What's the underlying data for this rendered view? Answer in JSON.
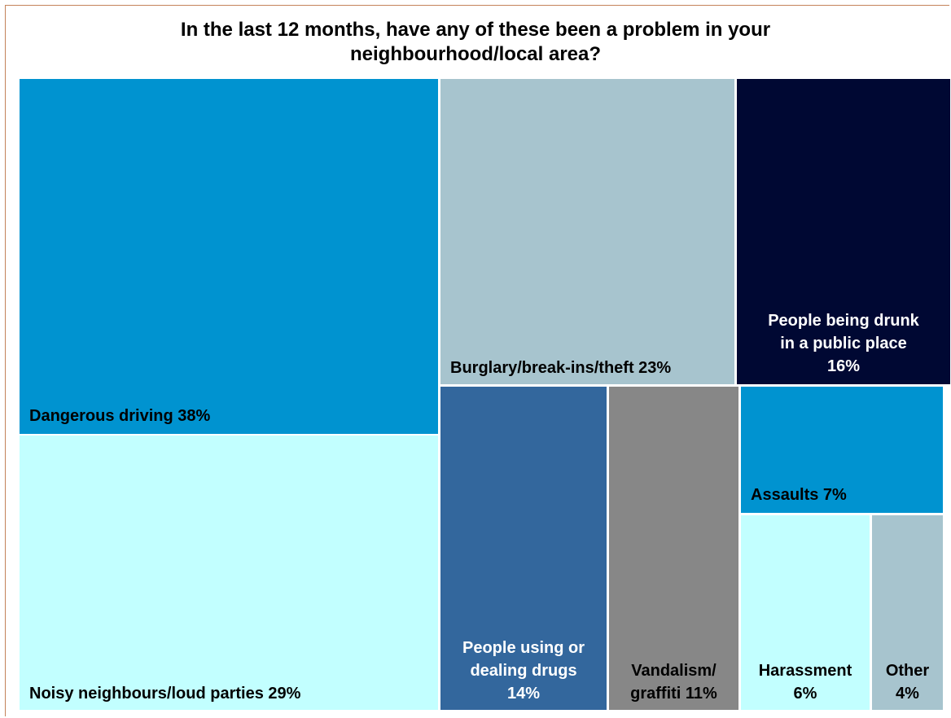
{
  "chart_data": {
    "type": "treemap",
    "title": "In the last 12 months, have any of these been a problem in your neighbourhood/local area?",
    "title_lines": [
      "In the last 12 months, have any of these been a problem in your",
      "neighbourhood/local area?"
    ],
    "unit": "%",
    "items": [
      {
        "name": "Dangerous driving",
        "value": 38,
        "label_lines": [
          "Dangerous driving 38%"
        ],
        "color": "#0093d0",
        "text_color": "#000000"
      },
      {
        "name": "Noisy neighbours/loud parties",
        "value": 29,
        "label_lines": [
          "Noisy neighbours/loud parties 29%"
        ],
        "color": "#c2ffff",
        "text_color": "#000000"
      },
      {
        "name": "Burglary/break-ins/theft",
        "value": 23,
        "label_lines": [
          "Burglary/break-ins/theft 23%"
        ],
        "color": "#a7c4ce",
        "text_color": "#000000"
      },
      {
        "name": "People being drunk in a public place",
        "value": 16,
        "label_lines": [
          "People being drunk",
          "in a public place",
          "16%"
        ],
        "color": "#000833",
        "text_color": "#ffffff"
      },
      {
        "name": "People using or dealing drugs",
        "value": 14,
        "label_lines": [
          "People using or",
          "dealing drugs",
          "14%"
        ],
        "color": "#33679d",
        "text_color": "#ffffff"
      },
      {
        "name": "Vandalism/graffiti",
        "value": 11,
        "label_lines": [
          "Vandalism/",
          "graffiti 11%"
        ],
        "color": "#878787",
        "text_color": "#000000"
      },
      {
        "name": "Assaults",
        "value": 7,
        "label_lines": [
          "Assaults 7%"
        ],
        "color": "#0093d0",
        "text_color": "#000000"
      },
      {
        "name": "Harassment",
        "value": 6,
        "label_lines": [
          "Harassment",
          "6%"
        ],
        "color": "#c2ffff",
        "text_color": "#000000"
      },
      {
        "name": "Other",
        "value": 4,
        "label_lines": [
          "Other",
          "4%"
        ],
        "color": "#a7c4ce",
        "text_color": "#000000"
      }
    ]
  }
}
